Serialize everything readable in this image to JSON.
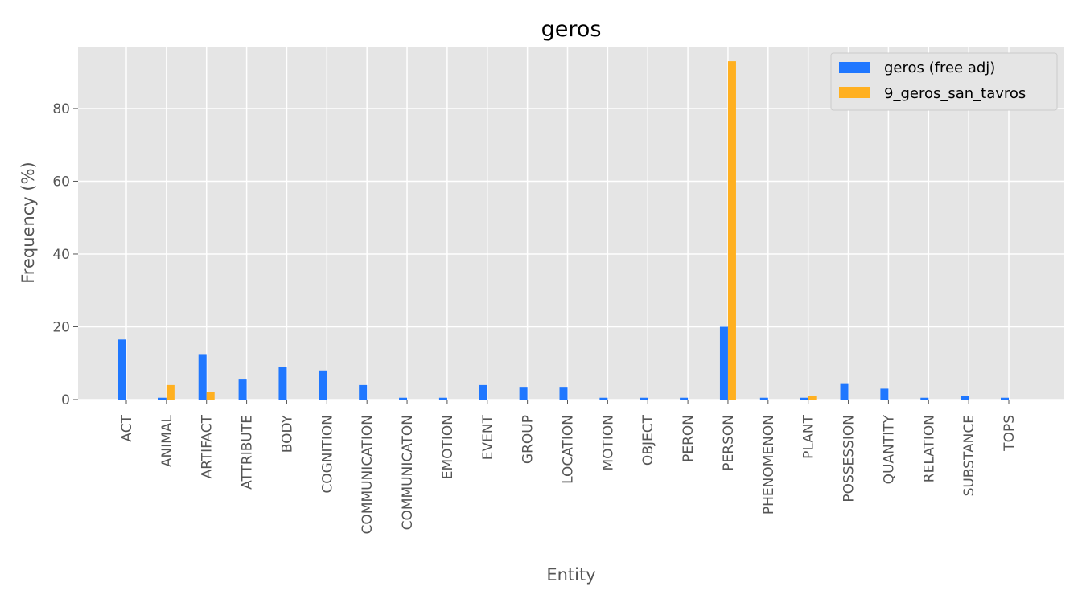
{
  "chart_data": {
    "type": "bar",
    "title": "geros",
    "xlabel": "Entity",
    "ylabel": "Frequency (%)",
    "ylim": [
      0,
      97
    ],
    "yticks": [
      0,
      20,
      40,
      60,
      80
    ],
    "grid": true,
    "legend_position": "top-right",
    "categories": [
      "ACT",
      "ANIMAL",
      "ARTIFACT",
      "ATTRIBUTE",
      "BODY",
      "COGNITION",
      "COMMUNICATION",
      "COMMUNICATON",
      "EMOTION",
      "EVENT",
      "GROUP",
      "LOCATION",
      "MOTION",
      "OBJECT",
      "PERON",
      "PERSON",
      "PHENOMENON",
      "PLANT",
      "POSSESSION",
      "QUANTITY",
      "RELATION",
      "SUBSTANCE",
      "TOPS"
    ],
    "series": [
      {
        "name": "geros (free adj)",
        "color": "#1f77ff",
        "values": [
          16.5,
          0.5,
          12.5,
          5.5,
          9,
          8,
          4,
          0.5,
          0.5,
          4,
          3.5,
          3.5,
          0.5,
          0.5,
          0.5,
          20,
          0.5,
          0.5,
          4.5,
          3,
          0.5,
          1,
          0.5
        ]
      },
      {
        "name": "9_geros_san_tavros",
        "color": "#ffb020",
        "values": [
          0,
          4,
          2,
          0,
          0,
          0,
          0,
          0,
          0,
          0,
          0,
          0,
          0,
          0,
          0,
          93,
          0,
          1,
          0,
          0,
          0,
          0,
          0
        ]
      }
    ]
  }
}
